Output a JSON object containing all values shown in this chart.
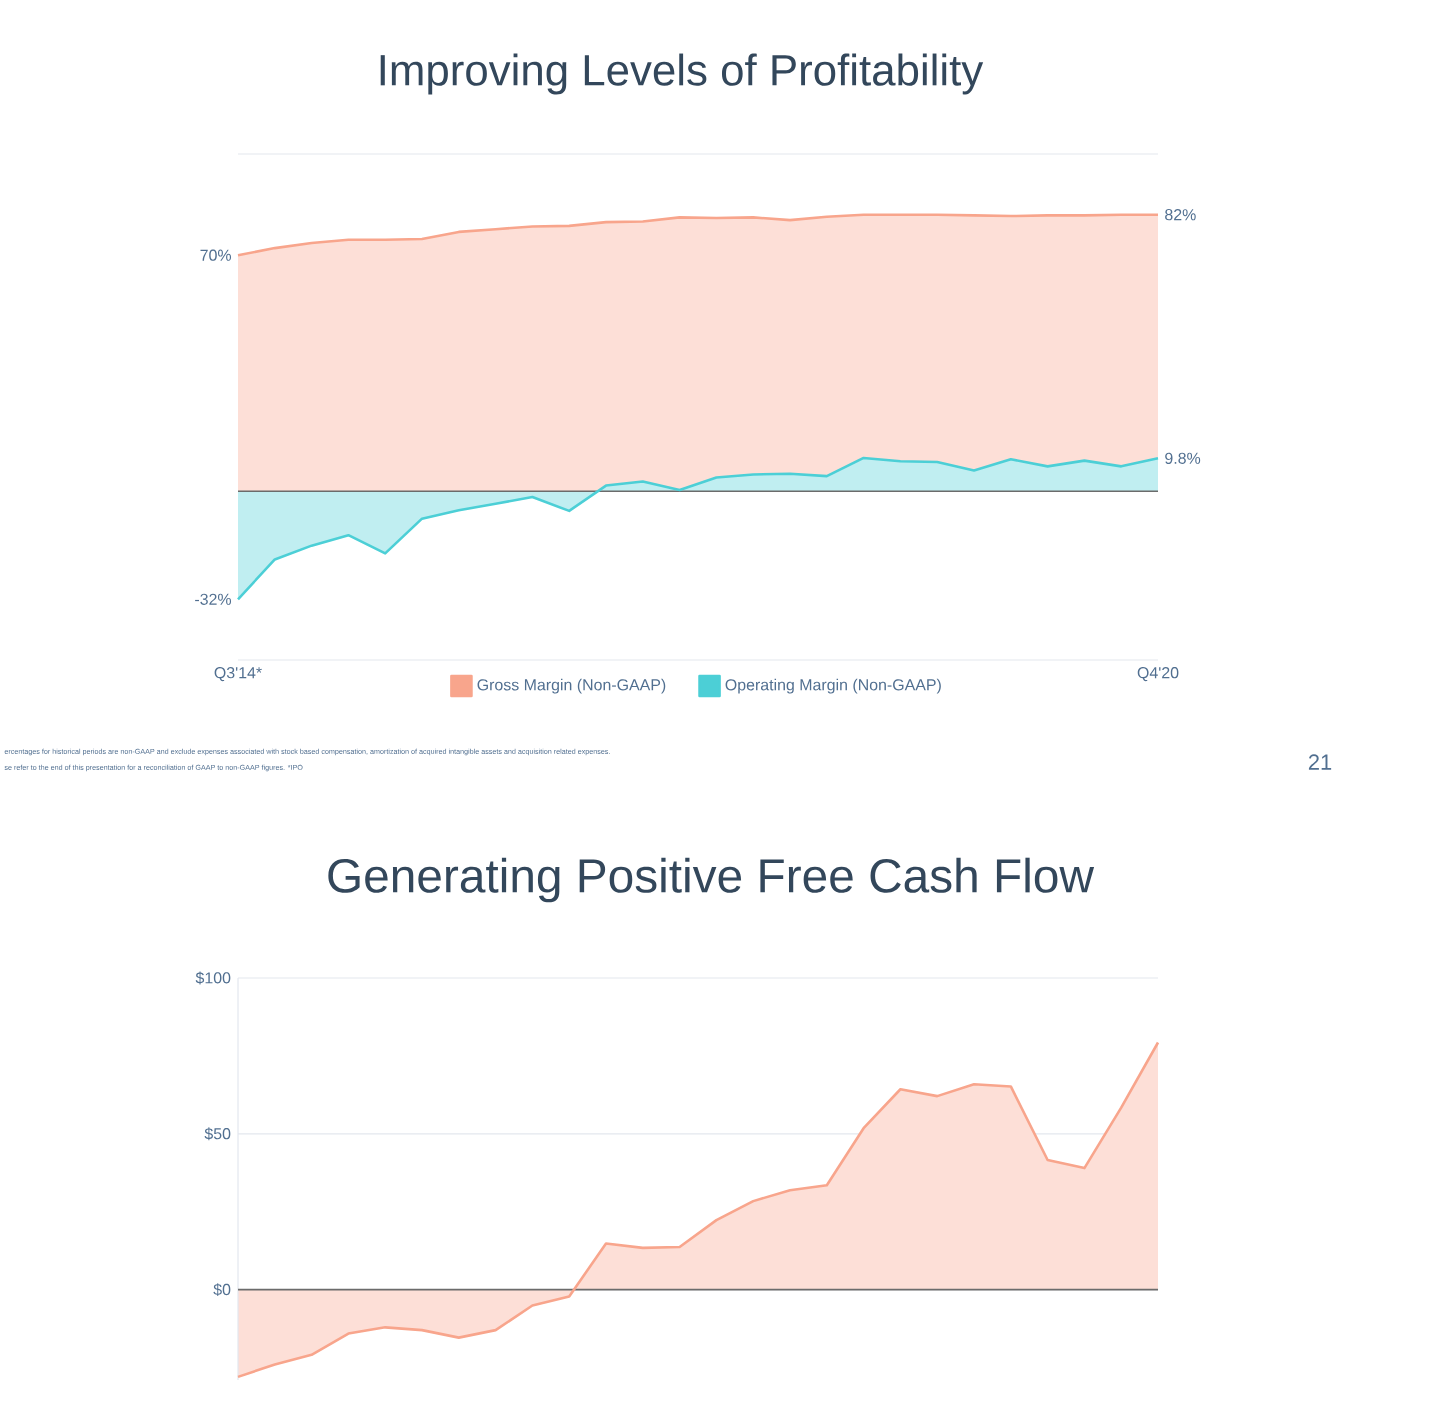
{
  "chart_data": [
    {
      "type": "area",
      "title": "Improving Levels of Profitability",
      "categories": [
        "Q3'14*",
        null,
        null,
        null,
        null,
        null,
        null,
        null,
        null,
        null,
        null,
        null,
        null,
        null,
        null,
        null,
        null,
        null,
        null,
        null,
        null,
        null,
        null,
        null,
        null,
        "Q4'20"
      ],
      "series": [
        {
          "name": "Gross Margin (Non-GAAP)",
          "color": "#f8a58c",
          "values": [
            70,
            72.1,
            73.6,
            74.6,
            74.6,
            74.8,
            76.9,
            77.7,
            78.5,
            78.7,
            79.8,
            80,
            81.2,
            81,
            81.2,
            80.4,
            81.4,
            82,
            82,
            82,
            81.8,
            81.6,
            81.8,
            81.8,
            82,
            82
          ],
          "value_labels": [
            "70%",
            null,
            null,
            null,
            null,
            null,
            null,
            null,
            null,
            null,
            null,
            null,
            null,
            null,
            null,
            null,
            null,
            null,
            null,
            null,
            null,
            null,
            null,
            null,
            null,
            "82%"
          ]
        },
        {
          "name": "Operating Margin (Non-GAAP)",
          "color": "#4ccfd6",
          "values": [
            -32,
            -20.2,
            -16.1,
            -13,
            -18.4,
            -8.1,
            -5.6,
            -3.7,
            -1.7,
            -5.8,
            1.7,
            2.9,
            0.4,
            4.1,
            5,
            5.2,
            4.5,
            9.9,
            8.9,
            8.7,
            6.2,
            9.5,
            7.4,
            9.1,
            7.4,
            9.8
          ],
          "value_labels": [
            "-32%",
            null,
            null,
            null,
            null,
            null,
            null,
            null,
            null,
            null,
            null,
            null,
            null,
            null,
            null,
            null,
            null,
            null,
            null,
            null,
            null,
            null,
            null,
            null,
            null,
            "9.8%"
          ]
        }
      ],
      "ylim": [
        -50,
        100
      ],
      "yticks": [
        {
          "value": -50,
          "label": null
        },
        {
          "value": 0,
          "label": null
        },
        {
          "value": 50,
          "label": null
        },
        {
          "value": 100,
          "label": null
        }
      ],
      "grid": "y",
      "tick_labels": "x",
      "legend": "bottom",
      "annotations": [
        "ercentages for historical periods are non-GAAP and exclude expenses associated with stock based compensation, amortization of acquired intangible assets and acquisition related expenses.",
        "se refer to the end of this presentation for a reconciliation of GAAP to non-GAAP figures. *IPO",
        "21"
      ]
    },
    {
      "type": "area",
      "title": "Generating Positive Free Cash Flow",
      "categories": [
        null,
        null,
        null,
        null,
        null,
        null,
        null,
        null,
        null,
        null,
        null,
        null,
        null,
        null,
        null,
        null,
        null,
        null,
        null,
        null,
        null,
        null,
        null,
        null,
        null,
        null
      ],
      "series": [
        {
          "color": "#f8a58c",
          "values": [
            -28,
            -24,
            -20.9,
            -14.1,
            -12.1,
            -13,
            -15.4,
            -13,
            -5.1,
            -2.2,
            14.8,
            13.4,
            13.7,
            22.3,
            28.4,
            31.9,
            33.5,
            51.8,
            64.3,
            62.1,
            65.9,
            65.2,
            41.6,
            39,
            58.4,
            79.3
          ]
        }
      ],
      "ylim": [
        -29,
        100
      ],
      "yticks": [
        {
          "value": 0,
          "label": "$0"
        },
        {
          "value": 50,
          "label": "$50"
        },
        {
          "value": 100,
          "label": "$100"
        }
      ],
      "grid": "y",
      "tick_labels": "y"
    }
  ]
}
